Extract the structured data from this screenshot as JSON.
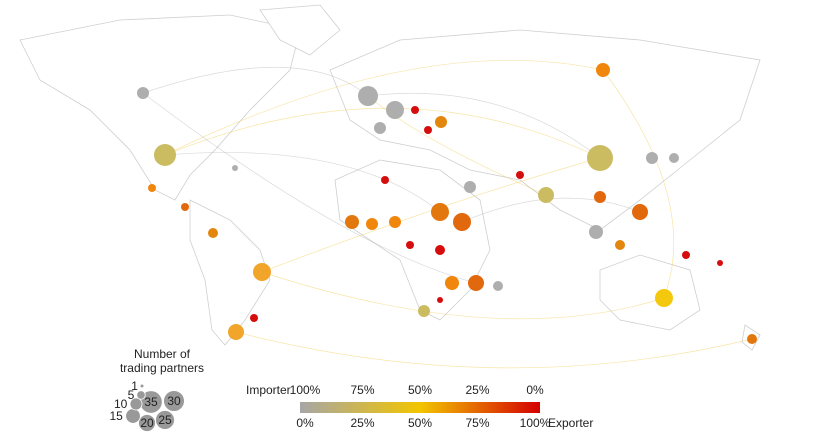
{
  "size_legend": {
    "title_lines": [
      "Number of",
      "trading partners"
    ],
    "sizes": [
      1,
      5,
      10,
      15,
      20,
      25,
      30,
      35
    ]
  },
  "color_scale": {
    "importer_label": "Importer",
    "exporter_label": "Exporter",
    "importer_ticks": [
      {
        "value": 100,
        "label": "100%"
      },
      {
        "value": 75,
        "label": "75%"
      },
      {
        "value": 50,
        "label": "50%"
      },
      {
        "value": 25,
        "label": "25%"
      },
      {
        "value": 0,
        "label": "0%"
      }
    ],
    "exporter_ticks": [
      {
        "value": 0,
        "label": "0%"
      },
      {
        "value": 25,
        "label": "25%"
      },
      {
        "value": 50,
        "label": "50%"
      },
      {
        "value": 75,
        "label": "75%"
      },
      {
        "value": 100,
        "label": "100%"
      }
    ],
    "colors": [
      "#a6a6a6",
      "#f2c500",
      "#d40000"
    ]
  }
}
